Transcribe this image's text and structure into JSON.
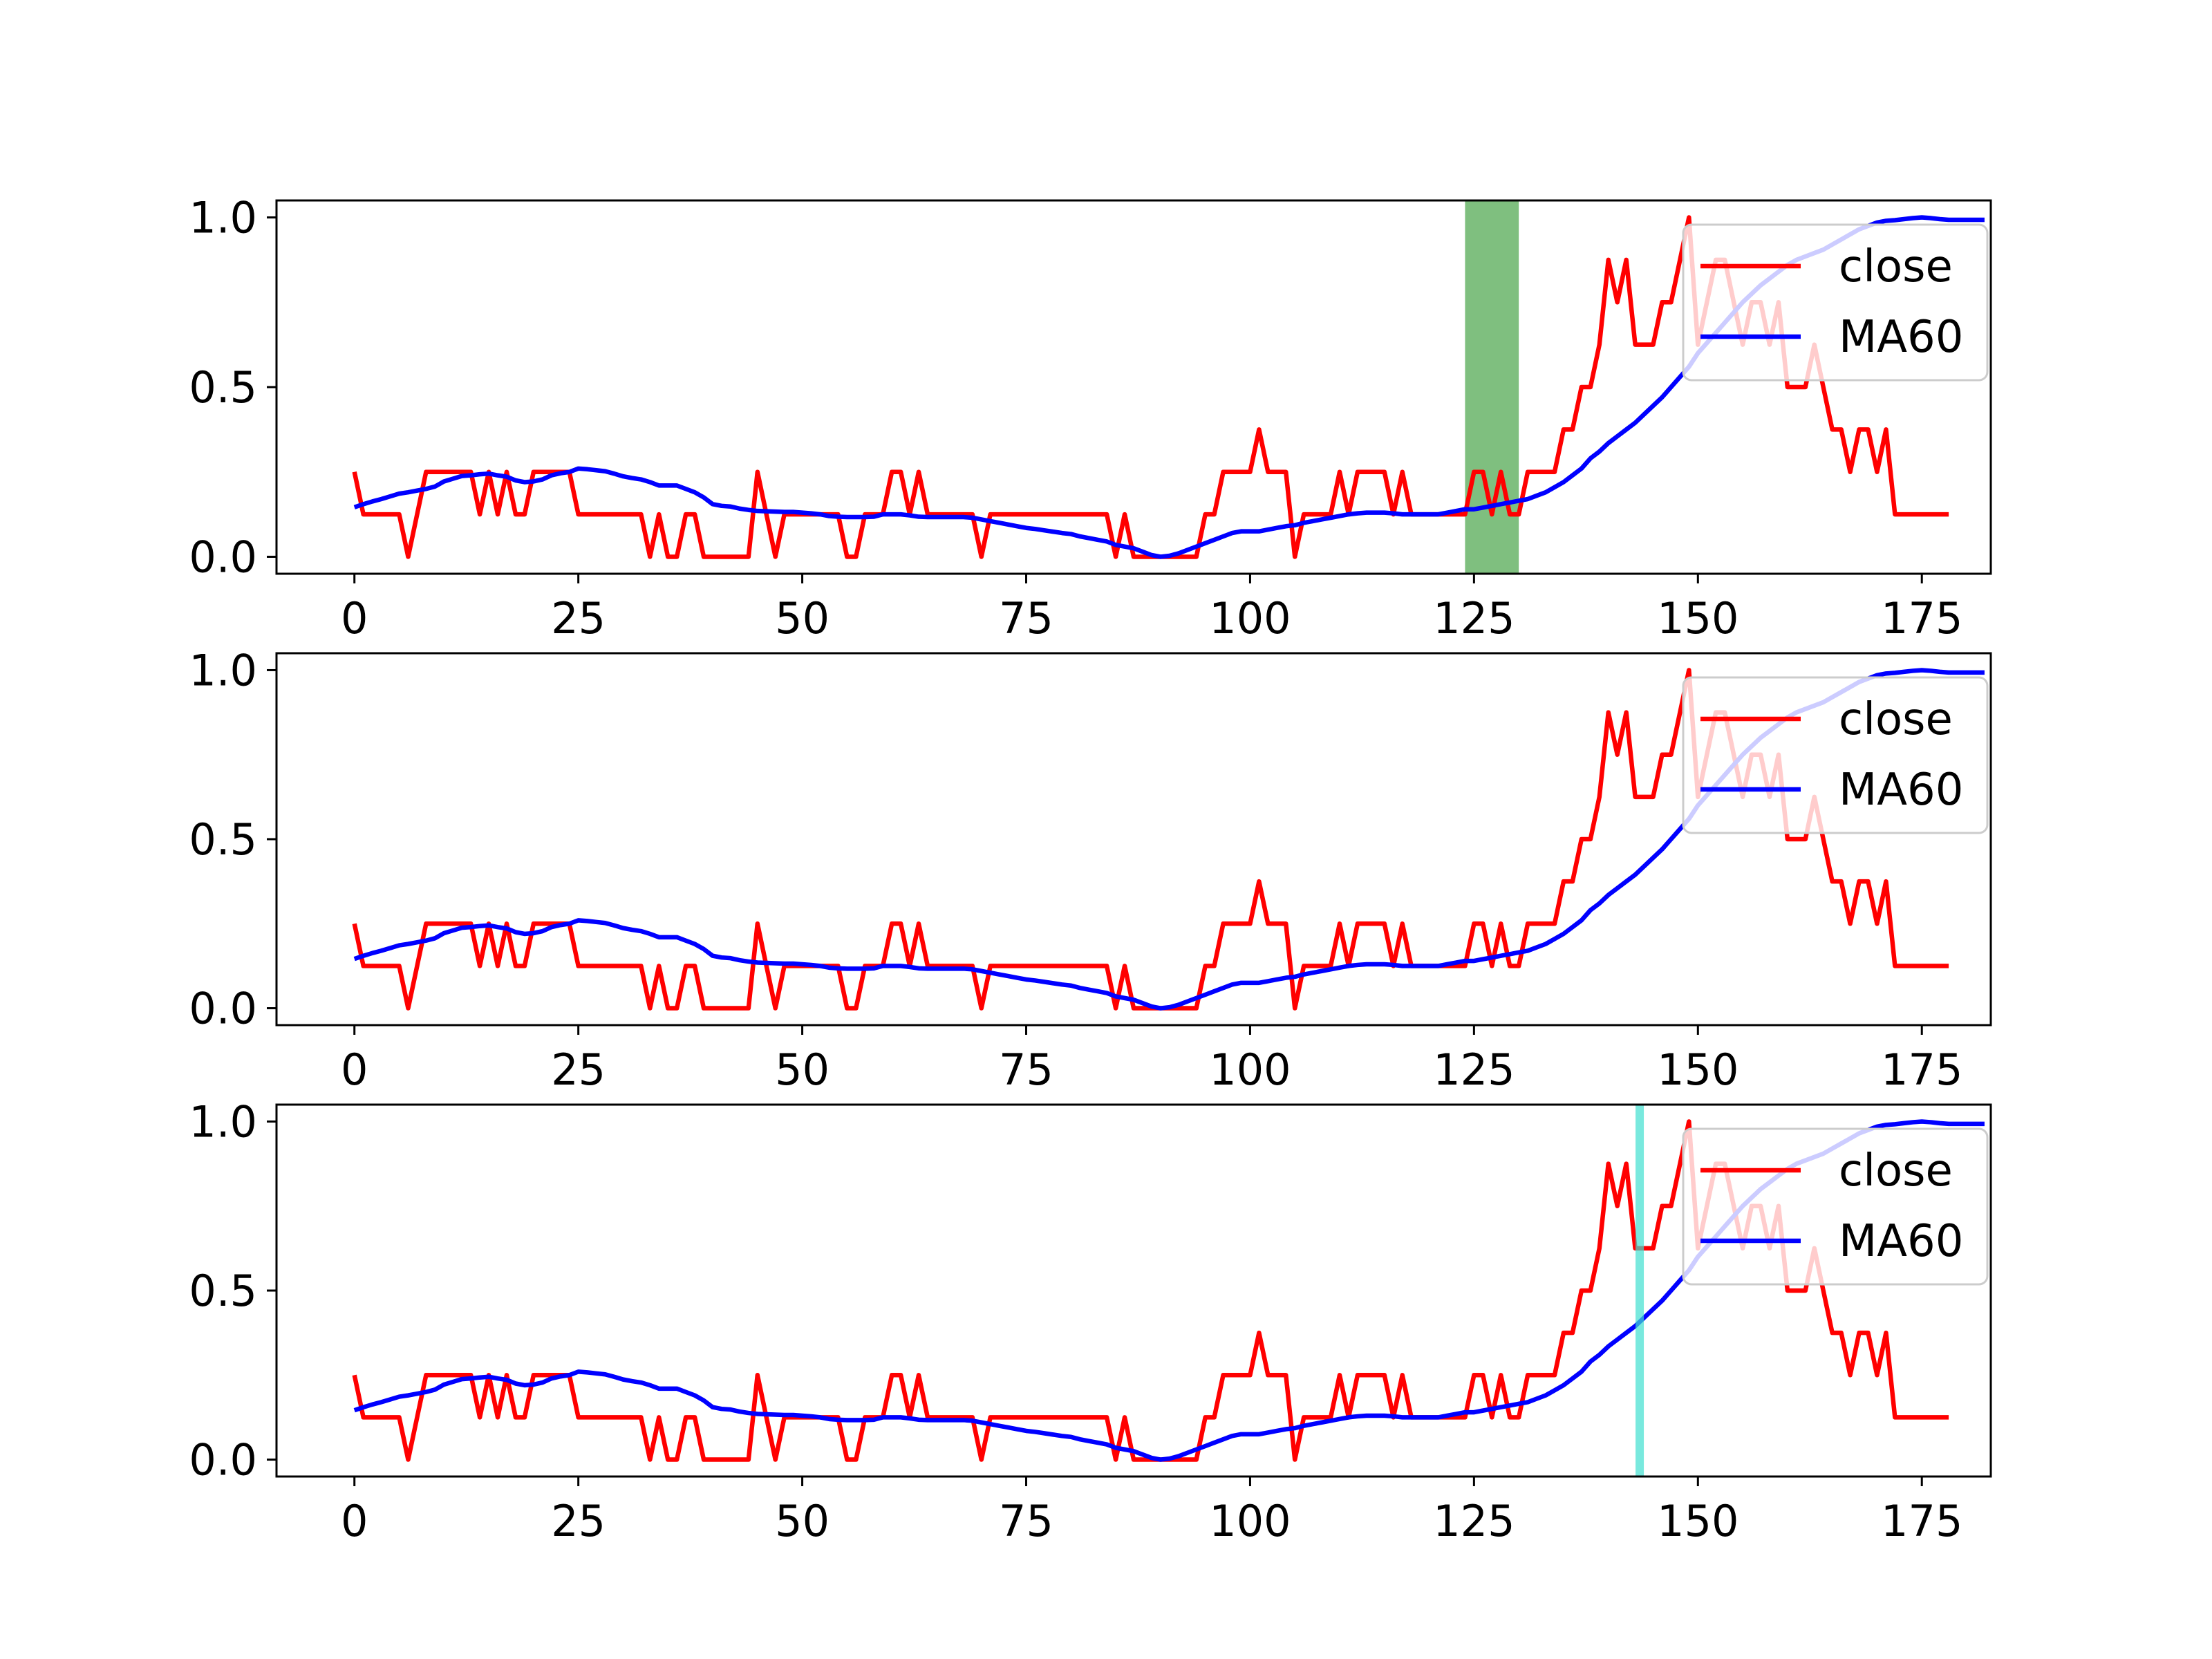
{
  "colors": {
    "close": "#ff0000",
    "ma60": "#0000ff",
    "span": "#008000",
    "vline": "#40e0d0",
    "axes": "#000000",
    "background": "#ffffff"
  },
  "chart_data": [
    {
      "type": "line",
      "title": "",
      "xlabel": "",
      "ylabel": "",
      "xlim": [
        -8.7,
        182.7
      ],
      "ylim": [
        -0.05,
        1.05
      ],
      "xticks": [
        "0",
        "25",
        "50",
        "75",
        "100",
        "125",
        "150",
        "175"
      ],
      "yticks": [
        "0.0",
        "0.5",
        "1.0"
      ],
      "legend": {
        "position": "top-right",
        "entries": [
          "close",
          "MA60"
        ]
      },
      "highlight": {
        "kind": "axvspan",
        "from": 124,
        "to": 130,
        "alpha": 0.5
      },
      "series_ref": "shared"
    },
    {
      "type": "line",
      "title": "",
      "xlabel": "",
      "ylabel": "",
      "xlim": [
        -8.7,
        182.7
      ],
      "ylim": [
        -0.05,
        1.05
      ],
      "xticks": [
        "0",
        "25",
        "50",
        "75",
        "100",
        "125",
        "150",
        "175"
      ],
      "yticks": [
        "0.0",
        "0.5",
        "1.0"
      ],
      "legend": {
        "position": "top-right",
        "entries": [
          "close",
          "MA60"
        ]
      },
      "highlight": null,
      "series_ref": "shared"
    },
    {
      "type": "line",
      "title": "",
      "xlabel": "",
      "ylabel": "",
      "xlim": [
        -8.7,
        182.7
      ],
      "ylim": [
        -0.05,
        1.05
      ],
      "xticks": [
        "0",
        "25",
        "50",
        "75",
        "100",
        "125",
        "150",
        "175"
      ],
      "yticks": [
        "0.0",
        "0.5",
        "1.0"
      ],
      "legend": {
        "position": "top-right",
        "entries": [
          "close",
          "MA60"
        ]
      },
      "highlight": {
        "kind": "axvline",
        "x": 143.5,
        "alpha": 0.7
      },
      "series_ref": "shared"
    }
  ],
  "series": {
    "x_start": 0,
    "close": {
      "name": "close",
      "values": [
        0.25,
        0.125,
        0.125,
        0.125,
        0.125,
        0.125,
        0.0,
        0.125,
        0.25,
        0.25,
        0.25,
        0.25,
        0.25,
        0.25,
        0.125,
        0.25,
        0.125,
        0.25,
        0.125,
        0.125,
        0.25,
        0.25,
        0.25,
        0.25,
        0.25,
        0.125,
        0.125,
        0.125,
        0.125,
        0.125,
        0.125,
        0.125,
        0.125,
        0.0,
        0.125,
        0.0,
        0.0,
        0.125,
        0.125,
        0.0,
        0.0,
        0.0,
        0.0,
        0.0,
        0.0,
        0.25,
        0.125,
        0.0,
        0.125,
        0.125,
        0.125,
        0.125,
        0.125,
        0.125,
        0.125,
        0.0,
        0.0,
        0.125,
        0.125,
        0.125,
        0.25,
        0.25,
        0.125,
        0.25,
        0.125,
        0.125,
        0.125,
        0.125,
        0.125,
        0.125,
        0.0,
        0.125,
        0.125,
        0.125,
        0.125,
        0.125,
        0.125,
        0.125,
        0.125,
        0.125,
        0.125,
        0.125,
        0.125,
        0.125,
        0.125,
        0.0,
        0.125,
        0.0,
        0.0,
        0.0,
        0.0,
        0.0,
        0.0,
        0.0,
        0.0,
        0.125,
        0.125,
        0.25,
        0.25,
        0.25,
        0.25,
        0.375,
        0.25,
        0.25,
        0.25,
        0.0,
        0.125,
        0.125,
        0.125,
        0.125,
        0.25,
        0.125,
        0.25,
        0.25,
        0.25,
        0.25,
        0.125,
        0.25,
        0.125,
        0.125,
        0.125,
        0.125,
        0.125,
        0.125,
        0.125,
        0.25,
        0.25,
        0.125,
        0.25,
        0.125,
        0.125,
        0.25,
        0.25,
        0.25,
        0.25,
        0.375,
        0.375,
        0.5,
        0.5,
        0.625,
        0.875,
        0.75,
        0.875,
        0.625,
        0.625,
        0.625,
        0.75,
        0.75,
        0.875,
        1.0,
        0.625,
        0.75,
        0.875,
        0.875,
        0.75,
        0.625,
        0.75,
        0.75,
        0.625,
        0.75,
        0.5,
        0.5,
        0.5,
        0.625,
        0.5,
        0.375,
        0.375,
        0.25,
        0.375,
        0.375,
        0.25,
        0.375,
        0.125,
        0.125,
        0.125,
        0.125,
        0.125,
        0.125,
        0.125
      ]
    },
    "ma60": {
      "name": "MA60",
      "values": [
        0.146,
        0.155,
        0.163,
        0.17,
        0.178,
        0.186,
        0.19,
        0.195,
        0.2,
        0.207,
        0.222,
        0.23,
        0.238,
        0.24,
        0.243,
        0.245,
        0.24,
        0.236,
        0.225,
        0.22,
        0.222,
        0.228,
        0.24,
        0.246,
        0.25,
        0.26,
        0.258,
        0.255,
        0.252,
        0.245,
        0.237,
        0.232,
        0.228,
        0.22,
        0.21,
        0.21,
        0.21,
        0.2,
        0.19,
        0.175,
        0.155,
        0.15,
        0.148,
        0.142,
        0.138,
        0.135,
        0.134,
        0.133,
        0.132,
        0.132,
        0.13,
        0.128,
        0.125,
        0.12,
        0.118,
        0.117,
        0.117,
        0.117,
        0.118,
        0.125,
        0.125,
        0.125,
        0.122,
        0.118,
        0.117,
        0.117,
        0.117,
        0.117,
        0.117,
        0.115,
        0.11,
        0.105,
        0.1,
        0.095,
        0.09,
        0.085,
        0.082,
        0.078,
        0.074,
        0.07,
        0.067,
        0.06,
        0.055,
        0.05,
        0.045,
        0.035,
        0.03,
        0.025,
        0.015,
        0.005,
        0.0,
        0.003,
        0.01,
        0.02,
        0.03,
        0.04,
        0.05,
        0.06,
        0.07,
        0.075,
        0.075,
        0.075,
        0.08,
        0.085,
        0.09,
        0.093,
        0.1,
        0.105,
        0.11,
        0.115,
        0.12,
        0.125,
        0.128,
        0.13,
        0.13,
        0.13,
        0.128,
        0.125,
        0.125,
        0.125,
        0.125,
        0.125,
        0.13,
        0.135,
        0.14,
        0.14,
        0.145,
        0.15,
        0.155,
        0.16,
        0.165,
        0.17,
        0.18,
        0.19,
        0.205,
        0.22,
        0.24,
        0.26,
        0.29,
        0.31,
        0.335,
        0.355,
        0.375,
        0.395,
        0.42,
        0.445,
        0.47,
        0.5,
        0.53,
        0.56,
        0.6,
        0.63,
        0.66,
        0.69,
        0.72,
        0.75,
        0.775,
        0.8,
        0.82,
        0.84,
        0.86,
        0.875,
        0.885,
        0.895,
        0.905,
        0.92,
        0.935,
        0.95,
        0.965,
        0.975,
        0.985,
        0.99,
        0.992,
        0.995,
        0.998,
        1.0,
        0.998,
        0.995,
        0.993,
        0.993,
        0.993,
        0.993,
        0.993
      ]
    }
  }
}
